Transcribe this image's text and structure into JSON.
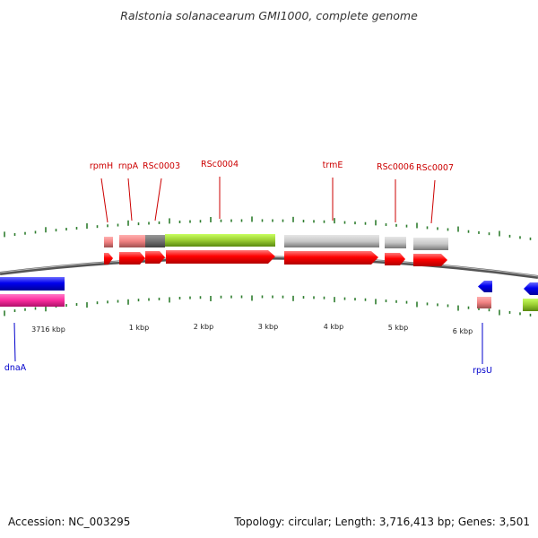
{
  "title": "Ralstonia solanacearum GMI1000, complete genome",
  "footer": {
    "accession": "Accession: NC_003295",
    "topology": "Topology: circular; Length: 3,716,413 bp; Genes: 3,501"
  },
  "scale_labels": [
    "3716 kbp",
    "1 kbp",
    "2 kbp",
    "3 kbp",
    "4 kbp",
    "5 kbp",
    "6 kbp"
  ],
  "forward_genes": [
    "rpmH",
    "rnpA",
    "RSc0003",
    "RSc0004",
    "trmE",
    "RSc0006",
    "RSc0007"
  ],
  "reverse_genes": [
    "dnaA",
    "rpsU"
  ],
  "colors": {
    "forward_label": "#cc0000",
    "reverse_label": "#0000cc",
    "cds": "#ff0000",
    "reverse_cds": "#0000ee",
    "tick": "#2e7d2e",
    "pink": "#f08080",
    "magenta": "#ff2fa0",
    "gray": "#c8c8c8",
    "darkgray": "#707070",
    "green": "#9acd32"
  }
}
